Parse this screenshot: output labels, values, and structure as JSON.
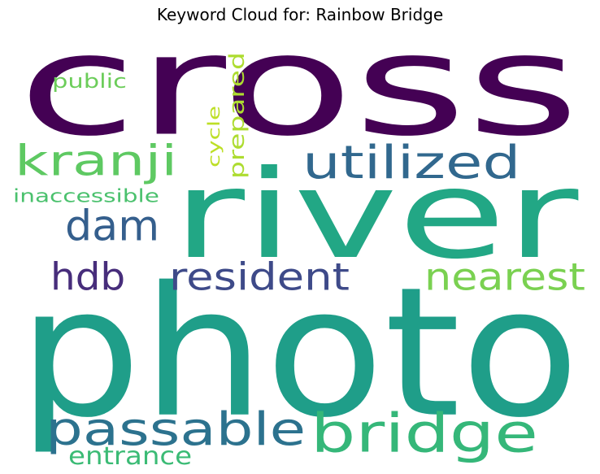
{
  "title": "Keyword Cloud for: Rainbow Bridge",
  "words": [
    {
      "id": "cross",
      "text": "cross",
      "color": "#440154"
    },
    {
      "id": "river",
      "text": "river",
      "color": "#22a785"
    },
    {
      "id": "photo",
      "text": "photo",
      "color": "#1f9e89"
    },
    {
      "id": "kranji",
      "text": "kranji",
      "color": "#5ec962"
    },
    {
      "id": "utilized",
      "text": "utilized",
      "color": "#31688e"
    },
    {
      "id": "dam",
      "text": "dam",
      "color": "#355f8d"
    },
    {
      "id": "hdb",
      "text": "hdb",
      "color": "#472d7b"
    },
    {
      "id": "resident",
      "text": "resident",
      "color": "#3e4a89"
    },
    {
      "id": "nearest",
      "text": "nearest",
      "color": "#7ad151"
    },
    {
      "id": "public",
      "text": "public",
      "color": "#6ccd5a"
    },
    {
      "id": "prepared",
      "text": "prepared",
      "color": "#addc30"
    },
    {
      "id": "cycle",
      "text": "cycle",
      "color": "#bddf26"
    },
    {
      "id": "inaccessible",
      "text": "inaccessible",
      "color": "#4ac16d"
    },
    {
      "id": "passable",
      "text": "passable",
      "color": "#2c728e"
    },
    {
      "id": "bridge",
      "text": "bridge",
      "color": "#35b779"
    },
    {
      "id": "entrance",
      "text": "entrance",
      "color": "#3bbb75"
    }
  ]
}
